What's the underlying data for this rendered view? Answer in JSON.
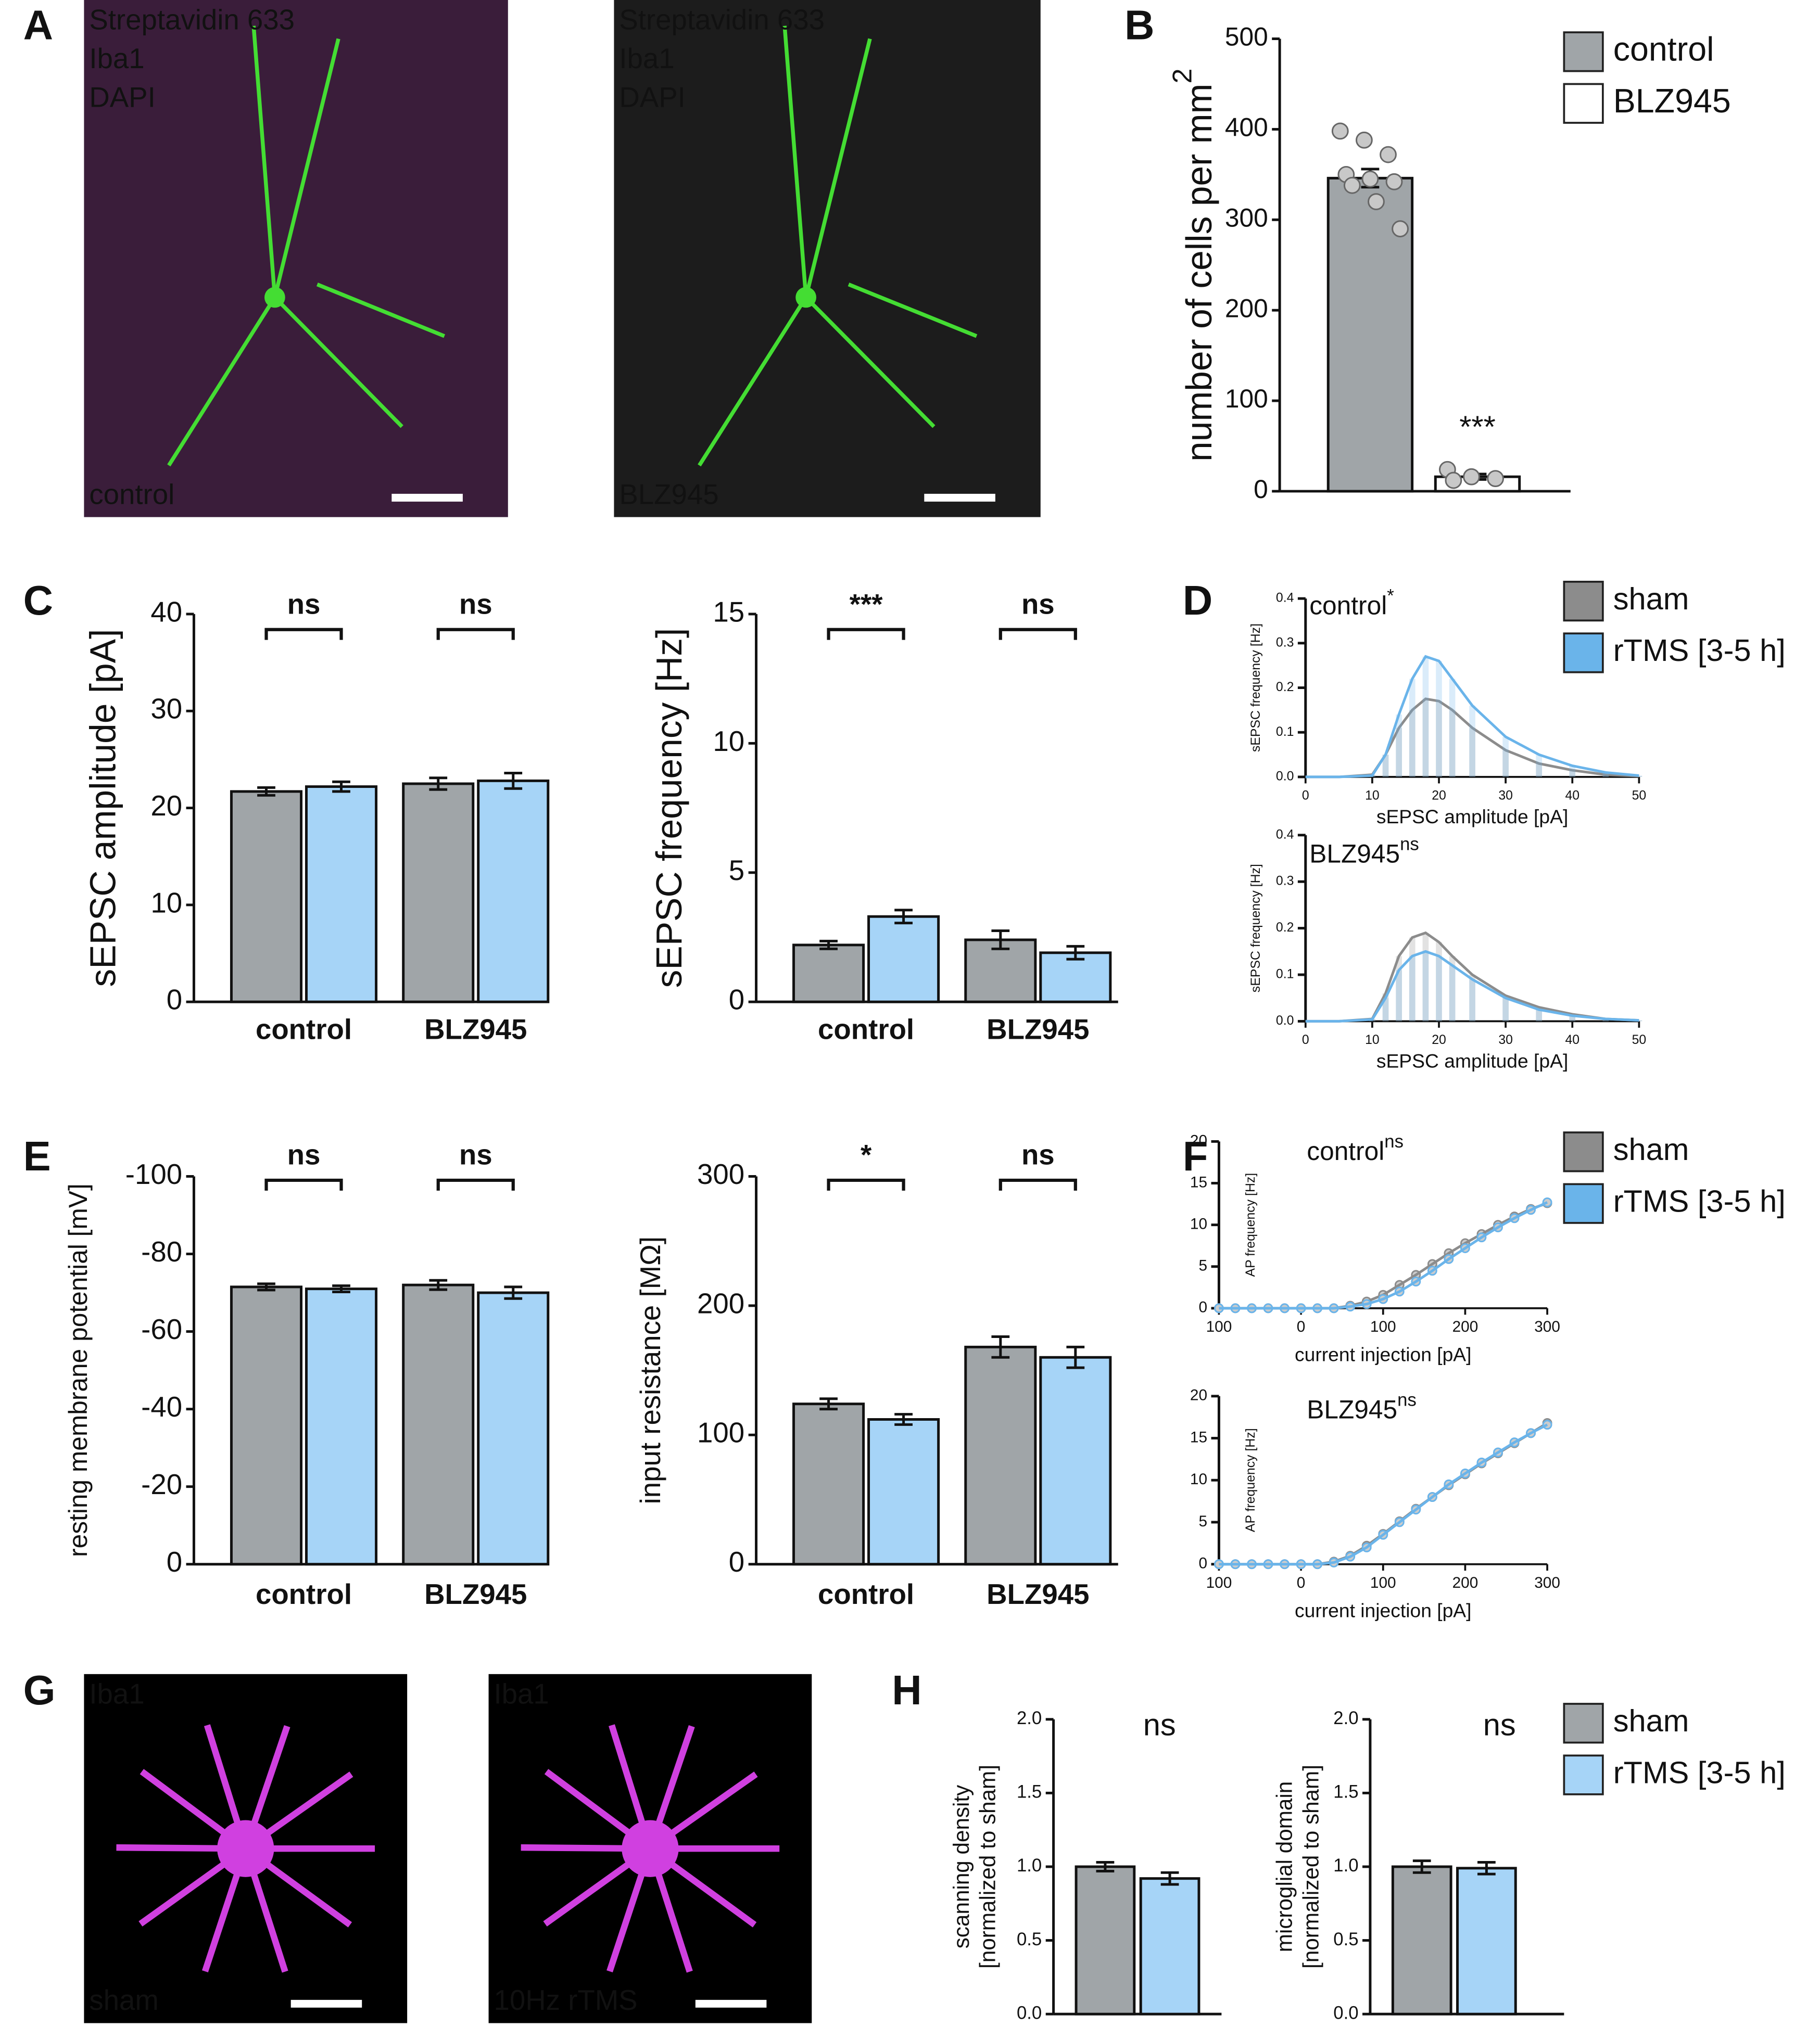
{
  "panel_labels": [
    "A",
    "B",
    "C",
    "D",
    "E",
    "F",
    "G",
    "H"
  ],
  "images": [
    {
      "labels": [
        "Streptavidin 633",
        "Iba1",
        "DAPI"
      ],
      "caption": "control"
    },
    {
      "labels": [
        "Streptavidin 633",
        "Iba1",
        "DAPI"
      ],
      "caption": "BLZ945"
    },
    {
      "labels": [
        "Iba1"
      ],
      "caption": "sham"
    },
    {
      "labels": [
        "Iba1"
      ],
      "caption": "10Hz rTMS"
    }
  ],
  "chart_data": [
    {
      "type": "bar",
      "y_label": "number of cells per mm",
      "y_label_sup": "2",
      "ylim": [
        0,
        500
      ],
      "yticks": [
        0,
        100,
        200,
        300,
        400,
        500
      ],
      "legend": true,
      "annotations": [
        "***"
      ],
      "series": [
        {
          "name": "control",
          "color": "#a0a5a8",
          "values": [
            346
          ],
          "errors": [
            10
          ],
          "points": [
            398,
            388,
            372,
            350,
            345,
            342,
            338,
            320,
            290
          ]
        },
        {
          "name": "BLZ945",
          "color": "#ffffff",
          "values": [
            16
          ],
          "errors": [
            3
          ],
          "points": [
            24,
            16,
            14,
            12
          ]
        }
      ]
    },
    {
      "type": "bar",
      "y_label": "sEPSC amplitude [pA]",
      "ylim": [
        0,
        40
      ],
      "yticks": [
        0,
        10,
        20,
        30,
        40
      ],
      "categories": [
        "control",
        "BLZ945"
      ],
      "annotations": [
        "ns",
        "ns"
      ],
      "series": [
        {
          "color": "#a0a5a8",
          "values": [
            21.7,
            22.5
          ],
          "errors": [
            0.4,
            0.6
          ]
        },
        {
          "color": "#a6d4f7",
          "values": [
            22.2,
            22.8
          ],
          "errors": [
            0.5,
            0.8
          ]
        }
      ]
    },
    {
      "type": "bar",
      "y_label": "sEPSC frequency [Hz]",
      "ylim": [
        0,
        15
      ],
      "yticks": [
        0,
        5,
        10,
        15
      ],
      "categories": [
        "control",
        "BLZ945"
      ],
      "annotations": [
        "***",
        "ns"
      ],
      "series": [
        {
          "color": "#a0a5a8",
          "values": [
            2.2,
            2.4
          ],
          "errors": [
            0.15,
            0.35
          ]
        },
        {
          "color": "#a6d4f7",
          "values": [
            3.3,
            1.9
          ],
          "errors": [
            0.25,
            0.25
          ]
        }
      ]
    },
    {
      "type": "line",
      "style": "histogram",
      "label": "control",
      "label_sup": "*",
      "y_label": "sEPSC frequency [Hz]",
      "x_label": "sEPSC amplitude [pA]",
      "legend": true,
      "xlim": [
        0,
        50
      ],
      "xticks": [
        0,
        10,
        20,
        30,
        40,
        50
      ],
      "ylim": [
        0,
        0.4
      ],
      "yticks": [
        {
          "value": 0,
          "label": "0.0"
        },
        0.1,
        0.2,
        0.3,
        0.4
      ],
      "x": [
        0,
        5,
        10,
        12,
        14,
        16,
        18,
        20,
        22,
        25,
        30,
        35,
        40,
        45,
        50
      ],
      "series": [
        {
          "name": "sham",
          "color": "#8c8c8c",
          "values": [
            0,
            0,
            0.005,
            0.05,
            0.11,
            0.15,
            0.175,
            0.17,
            0.15,
            0.11,
            0.06,
            0.03,
            0.015,
            0.005,
            0.002
          ]
        },
        {
          "name": "rTMS [3-5 h]",
          "color": "#6ab4ea",
          "values": [
            0,
            0,
            0.003,
            0.05,
            0.14,
            0.22,
            0.27,
            0.26,
            0.22,
            0.16,
            0.09,
            0.05,
            0.025,
            0.01,
            0.003
          ]
        }
      ]
    },
    {
      "type": "line",
      "style": "histogram",
      "label": "BLZ945",
      "label_sup": "ns",
      "y_label": "sEPSC frequency [Hz]",
      "x_label": "sEPSC amplitude [pA]",
      "xlim": [
        0,
        50
      ],
      "xticks": [
        0,
        10,
        20,
        30,
        40,
        50
      ],
      "ylim": [
        0,
        0.4
      ],
      "yticks": [
        {
          "value": 0,
          "label": "0.0"
        },
        0.1,
        0.2,
        0.3,
        0.4
      ],
      "x": [
        0,
        5,
        10,
        12,
        14,
        16,
        18,
        20,
        22,
        25,
        30,
        35,
        40,
        45,
        50
      ],
      "series": [
        {
          "color": "#8c8c8c",
          "values": [
            0,
            0,
            0.005,
            0.06,
            0.14,
            0.18,
            0.19,
            0.17,
            0.14,
            0.1,
            0.055,
            0.03,
            0.015,
            0.005,
            0.002
          ]
        },
        {
          "color": "#6ab4ea",
          "values": [
            0,
            0,
            0.004,
            0.05,
            0.11,
            0.14,
            0.15,
            0.14,
            0.12,
            0.09,
            0.05,
            0.025,
            0.012,
            0.005,
            0.002
          ]
        }
      ]
    },
    {
      "type": "bar",
      "y_label": "resting membrane potential [mV]",
      "ylim": [
        0,
        -100
      ],
      "yticks": [
        0,
        -20,
        -40,
        -60,
        -80,
        -100
      ],
      "categories": [
        "control",
        "BLZ945"
      ],
      "annotations": [
        "ns",
        "ns"
      ],
      "series": [
        {
          "color": "#a0a5a8",
          "values": [
            -71.5,
            -72
          ],
          "errors": [
            0.8,
            1.2
          ]
        },
        {
          "color": "#a6d4f7",
          "values": [
            -71,
            -70
          ],
          "errors": [
            0.8,
            1.5
          ]
        }
      ]
    },
    {
      "type": "bar",
      "y_label": "input resistance [MΩ]",
      "ylim": [
        0,
        300
      ],
      "yticks": [
        0,
        100,
        200,
        300
      ],
      "categories": [
        "control",
        "BLZ945"
      ],
      "annotations": [
        "*",
        "ns"
      ],
      "series": [
        {
          "color": "#a0a5a8",
          "values": [
            124,
            168
          ],
          "errors": [
            4,
            8
          ]
        },
        {
          "color": "#a6d4f7",
          "values": [
            112,
            160
          ],
          "errors": [
            4,
            8
          ]
        }
      ]
    },
    {
      "type": "line",
      "style": "markers",
      "label": "control",
      "label_sup": "ns",
      "y_label": "AP frequency [Hz]",
      "x_label": "current injection [pA]",
      "legend": true,
      "xlim": [
        -100,
        300
      ],
      "xticks": [
        {
          "value": -100,
          "label": "100"
        },
        0,
        100,
        200,
        300
      ],
      "ylim": [
        0,
        20
      ],
      "yticks": [
        0,
        5,
        10,
        15,
        20
      ],
      "x": [
        -100,
        -80,
        -60,
        -40,
        -20,
        0,
        20,
        40,
        60,
        80,
        100,
        120,
        140,
        160,
        180,
        200,
        220,
        240,
        260,
        280,
        300
      ],
      "series": [
        {
          "name": "sham",
          "color": "#8c8c8c",
          "values": [
            0,
            0,
            0,
            0,
            0,
            0,
            0,
            0,
            0.3,
            0.8,
            1.6,
            2.8,
            4.0,
            5.3,
            6.6,
            7.8,
            8.9,
            10.0,
            11.0,
            11.9,
            12.6
          ]
        },
        {
          "name": "rTMS [3-5 h]",
          "color": "#6ab4ea",
          "values": [
            0,
            0,
            0,
            0,
            0,
            0,
            0,
            0,
            0.2,
            0.5,
            1.1,
            2.0,
            3.2,
            4.5,
            5.9,
            7.2,
            8.5,
            9.7,
            10.8,
            11.8,
            12.7
          ]
        }
      ]
    },
    {
      "type": "line",
      "style": "markers",
      "label": "BLZ945",
      "label_sup": "ns",
      "y_label": "AP frequency [Hz]",
      "x_label": "current injection [pA]",
      "xlim": [
        -100,
        300
      ],
      "xticks": [
        {
          "value": -100,
          "label": "100"
        },
        0,
        100,
        200,
        300
      ],
      "ylim": [
        0,
        20
      ],
      "yticks": [
        0,
        5,
        10,
        15,
        20
      ],
      "x": [
        -100,
        -80,
        -60,
        -40,
        -20,
        0,
        20,
        40,
        60,
        80,
        100,
        120,
        140,
        160,
        180,
        200,
        220,
        240,
        260,
        280,
        300
      ],
      "series": [
        {
          "color": "#8c8c8c",
          "values": [
            0,
            0,
            0,
            0,
            0,
            0,
            0,
            0.3,
            1.0,
            2.2,
            3.6,
            5.1,
            6.6,
            8.0,
            9.4,
            10.7,
            12.0,
            13.2,
            14.4,
            15.6,
            16.8
          ]
        },
        {
          "color": "#6ab4ea",
          "values": [
            0,
            0,
            0,
            0,
            0,
            0,
            0,
            0.2,
            0.9,
            2.0,
            3.5,
            5.0,
            6.5,
            8.0,
            9.5,
            10.8,
            12.1,
            13.3,
            14.5,
            15.6,
            16.6
          ]
        }
      ]
    },
    {
      "type": "bar",
      "y_label": [
        "scanning density",
        "[normalized to sham]"
      ],
      "ylim": [
        0,
        2
      ],
      "yticks": [
        {
          "value": 0,
          "label": "0.0"
        },
        0.5,
        {
          "value": 1,
          "label": "1.0"
        },
        1.5,
        {
          "value": 2,
          "label": "2.0"
        }
      ],
      "annotations": [
        "ns"
      ],
      "series": [
        {
          "color": "#a0a5a8",
          "values": [
            1.0
          ],
          "errors": [
            0.03
          ]
        },
        {
          "color": "#a6d4f7",
          "values": [
            0.92
          ],
          "errors": [
            0.04
          ]
        }
      ]
    },
    {
      "type": "bar",
      "y_label": [
        "microglial domain",
        "[normalized to sham]"
      ],
      "ylim": [
        0,
        2
      ],
      "yticks": [
        {
          "value": 0,
          "label": "0.0"
        },
        0.5,
        {
          "value": 1,
          "label": "1.0"
        },
        1.5,
        {
          "value": 2,
          "label": "2.0"
        }
      ],
      "annotations": [
        "ns"
      ],
      "legend": true,
      "series": [
        {
          "name": "sham",
          "color": "#a0a5a8",
          "values": [
            1.0
          ],
          "errors": [
            0.04
          ]
        },
        {
          "name": "rTMS [3-5 h]",
          "color": "#a6d4f7",
          "values": [
            0.99
          ],
          "errors": [
            0.04
          ]
        }
      ]
    }
  ]
}
